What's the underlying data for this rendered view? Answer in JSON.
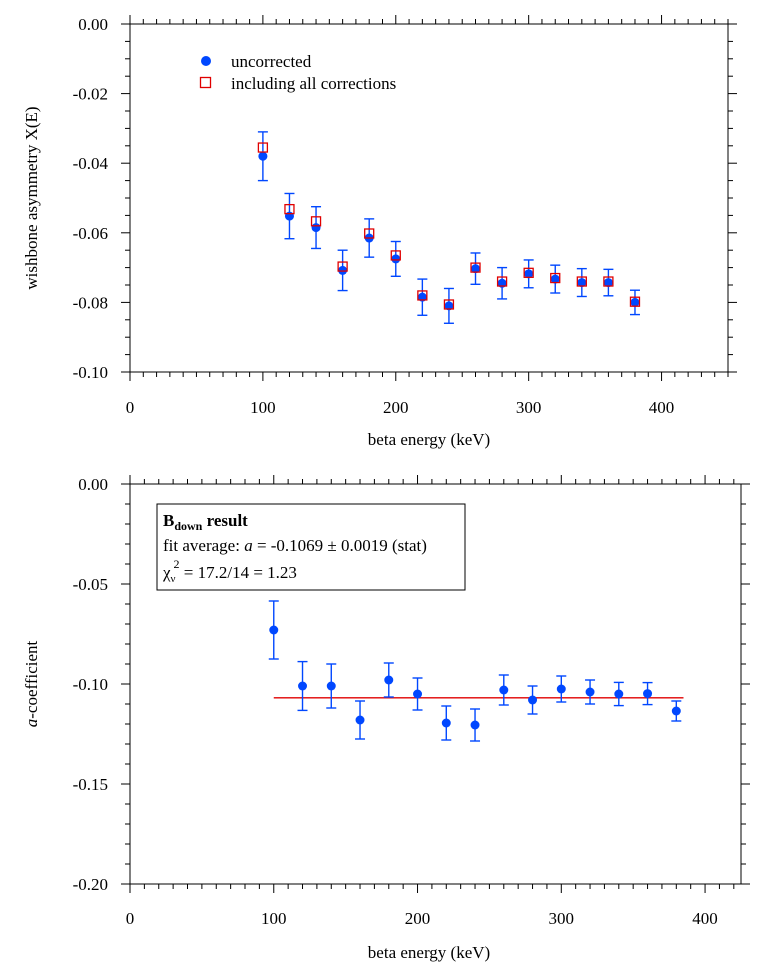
{
  "colors": {
    "uncorrected": "#0047ff",
    "corrected": "#e00000",
    "fit_line": "#e00000",
    "axis": "#000000"
  },
  "chart_data": [
    {
      "type": "scatter",
      "title": "",
      "xlabel": "beta energy (keV)",
      "ylabel": "wishbone asymmetry X(E)",
      "xlim": [
        0,
        450
      ],
      "ylim": [
        -0.1,
        0.0
      ],
      "xticks": [
        0,
        100,
        200,
        300,
        400
      ],
      "yticks": [
        0.0,
        -0.02,
        -0.04,
        -0.06,
        -0.08,
        -0.1
      ],
      "xtick_labels": [
        "0",
        "100",
        "200",
        "300",
        "400"
      ],
      "ytick_labels": [
        "0.00",
        "-0.02",
        "-0.04",
        "-0.06",
        "-0.08",
        "-0.10"
      ],
      "legend": {
        "placement": "top-left",
        "entries": [
          {
            "label": "uncorrected",
            "marker": "filled-circle"
          },
          {
            "label": "including all corrections",
            "marker": "open-square"
          }
        ]
      },
      "series": [
        {
          "name": "uncorrected",
          "x": [
            100,
            120,
            140,
            160,
            180,
            200,
            220,
            240,
            260,
            280,
            300,
            320,
            340,
            360,
            380
          ],
          "y": [
            -0.038,
            -0.0552,
            -0.0585,
            -0.0708,
            -0.0615,
            -0.0675,
            -0.0785,
            -0.081,
            -0.0703,
            -0.0745,
            -0.0718,
            -0.0733,
            -0.0743,
            -0.0743,
            -0.08
          ],
          "err": [
            0.007,
            0.0065,
            0.006,
            0.0058,
            0.0055,
            0.005,
            0.0052,
            0.005,
            0.0045,
            0.0045,
            0.004,
            0.004,
            0.004,
            0.0038,
            0.0035
          ]
        },
        {
          "name": "including all corrections",
          "x": [
            100,
            120,
            140,
            160,
            180,
            200,
            220,
            240,
            260,
            280,
            300,
            320,
            340,
            360,
            380
          ],
          "y": [
            -0.0355,
            -0.0532,
            -0.0567,
            -0.0697,
            -0.0602,
            -0.0665,
            -0.078,
            -0.0806,
            -0.07,
            -0.074,
            -0.0715,
            -0.073,
            -0.074,
            -0.074,
            -0.0798
          ]
        }
      ]
    },
    {
      "type": "scatter",
      "title": "",
      "xlabel": "beta energy (keV)",
      "ylabel_italic": "a",
      "ylabel_rest": "-coefficient",
      "xlim": [
        0,
        425
      ],
      "ylim": [
        -0.2,
        0.0
      ],
      "xticks": [
        0,
        100,
        200,
        300,
        400
      ],
      "yticks": [
        0.0,
        -0.05,
        -0.1,
        -0.15,
        -0.2
      ],
      "xtick_labels": [
        "0",
        "100",
        "200",
        "300",
        "400"
      ],
      "ytick_labels": [
        "0.00",
        "-0.05",
        "-0.10",
        "-0.15",
        "-0.20"
      ],
      "annotation": {
        "title_main": "B",
        "title_sub": "down",
        "title_rest": " result",
        "fit_prefix": "fit average: ",
        "fit_var": "a",
        "fit_value": " = -0.1069 ± 0.0019 (stat)",
        "chi_symbol": "χ",
        "chi_sub": "ν",
        "chi_sup": "2",
        "chi_value": " = 17.2/14 = 1.23"
      },
      "fit": {
        "value": -0.1069,
        "x_start": 100,
        "x_end": 385
      },
      "series": [
        {
          "name": "a-coefficient",
          "x": [
            100,
            120,
            140,
            160,
            180,
            200,
            220,
            240,
            260,
            280,
            300,
            320,
            340,
            360,
            380
          ],
          "y": [
            -0.073,
            -0.101,
            -0.101,
            -0.118,
            -0.098,
            -0.105,
            -0.1195,
            -0.1205,
            -0.103,
            -0.108,
            -0.1025,
            -0.104,
            -0.105,
            -0.1048,
            -0.1135
          ],
          "err": [
            0.0145,
            0.0122,
            0.011,
            0.0095,
            0.0085,
            0.008,
            0.0085,
            0.008,
            0.0075,
            0.007,
            0.0065,
            0.006,
            0.0058,
            0.0055,
            0.005
          ]
        }
      ]
    }
  ]
}
